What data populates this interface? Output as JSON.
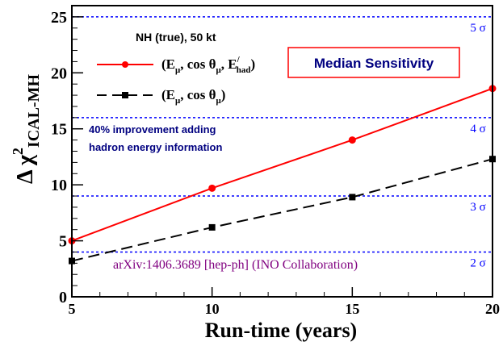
{
  "chart_data": {
    "type": "line",
    "x": [
      5,
      10,
      15,
      20
    ],
    "xlim": [
      5,
      20
    ],
    "ylim": [
      0,
      26
    ],
    "xlabel": "Run-time (years)",
    "ylabel": {
      "prefix": "Δ χ",
      "superscript": "2",
      "subscript": "ICAL-MH"
    },
    "x_ticks": [
      "5",
      "10",
      "15",
      "20"
    ],
    "y_ticks": [
      "0",
      "5",
      "10",
      "15",
      "20",
      "25"
    ],
    "x_tick_values": [
      5,
      10,
      15,
      20
    ],
    "y_tick_values": [
      0,
      5,
      10,
      15,
      20,
      25
    ],
    "series": [
      {
        "name": "(Eμ, cos θμ, E'had)",
        "values": [
          5.0,
          9.7,
          14.0,
          18.6
        ],
        "color": "#ff0000",
        "marker": "circle",
        "dash": "solid"
      },
      {
        "name": "(Eμ, cos θμ)",
        "values": [
          3.2,
          6.2,
          8.9,
          12.3
        ],
        "color": "#000000",
        "marker": "square",
        "dash": "dashed"
      }
    ],
    "reference_lines": [
      {
        "y": 4,
        "label": "2 σ"
      },
      {
        "y": 9,
        "label": "3 σ"
      },
      {
        "y": 16,
        "label": "4 σ"
      },
      {
        "y": 25,
        "label": "5 σ"
      }
    ],
    "reference_color": "#0000ff",
    "legend_title": "NH (true), 50 kt",
    "legend_placement": "top-left",
    "annotations": {
      "median_sensitivity": "Median Sensitivity",
      "improvement_line1": "40% improvement adding",
      "improvement_line2": "hadron energy information",
      "arxiv": "arXiv:1406.3689 [hep-ph] (INO Collaboration)"
    },
    "colors": {
      "median_text": "#000080",
      "median_box": "#ff0000",
      "improvement_text": "#000080",
      "arxiv_text": "#800080"
    },
    "grid": false
  }
}
